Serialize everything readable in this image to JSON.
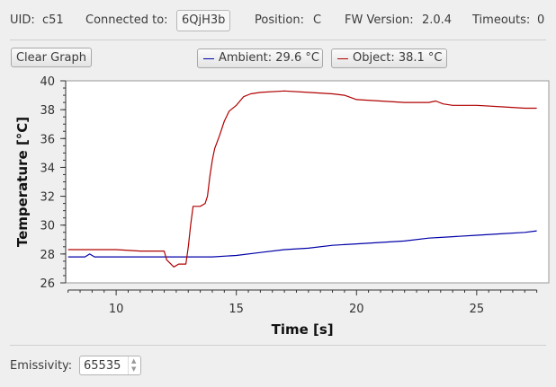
{
  "info": {
    "uid_label": "UID:",
    "uid_value": "c51",
    "connected_label": "Connected to:",
    "connected_value": "6QjH3b",
    "position_label": "Position:",
    "position_value": "C",
    "fw_label": "FW Version:",
    "fw_value": "2.0.4",
    "timeouts_label": "Timeouts:",
    "timeouts_value": "0"
  },
  "toolbar": {
    "clear_label": "Clear Graph"
  },
  "legend": {
    "ambient": "Ambient: 29.6 °C",
    "object": "Object: 38.1 °C"
  },
  "settings": {
    "emissivity_label": "Emissivity:",
    "emissivity_value": "65535"
  },
  "chart_data": {
    "type": "line",
    "xlabel": "Time [s]",
    "ylabel": "Temperature [°C]",
    "xlim": [
      7.9,
      28.0
    ],
    "ylim": [
      26,
      40
    ],
    "xticks": [
      10,
      15,
      20,
      25
    ],
    "yticks": [
      26,
      28,
      30,
      32,
      34,
      36,
      38,
      40
    ],
    "colors": {
      "ambient": "#0000a8",
      "object": "#b00000"
    },
    "series": [
      {
        "name": "Ambient",
        "x": [
          8.0,
          8.7,
          8.9,
          9.1,
          10.0,
          12.0,
          14.0,
          15.0,
          16.0,
          17.0,
          18.0,
          19.0,
          20.0,
          21.0,
          22.0,
          23.0,
          24.0,
          25.0,
          26.0,
          27.0,
          27.5
        ],
        "y": [
          27.8,
          27.8,
          28.0,
          27.8,
          27.8,
          27.8,
          27.8,
          27.9,
          28.1,
          28.3,
          28.4,
          28.6,
          28.7,
          28.8,
          28.9,
          29.1,
          29.2,
          29.3,
          29.4,
          29.5,
          29.6
        ]
      },
      {
        "name": "Object",
        "x": [
          8.0,
          9.0,
          10.0,
          11.0,
          12.0,
          12.1,
          12.4,
          12.6,
          12.9,
          13.0,
          13.1,
          13.2,
          13.5,
          13.7,
          13.8,
          13.9,
          14.0,
          14.1,
          14.3,
          14.5,
          14.7,
          15.0,
          15.3,
          15.6,
          16.0,
          17.0,
          18.0,
          19.0,
          19.5,
          20.0,
          21.0,
          22.0,
          23.0,
          23.3,
          23.6,
          24.0,
          25.0,
          26.0,
          27.0,
          27.5
        ],
        "y": [
          28.3,
          28.3,
          28.3,
          28.2,
          28.2,
          27.6,
          27.1,
          27.3,
          27.3,
          28.5,
          30.0,
          31.3,
          31.3,
          31.5,
          32.0,
          33.4,
          34.5,
          35.3,
          36.2,
          37.2,
          37.9,
          38.3,
          38.9,
          39.1,
          39.2,
          39.3,
          39.2,
          39.1,
          39.0,
          38.7,
          38.6,
          38.5,
          38.5,
          38.6,
          38.4,
          38.3,
          38.3,
          38.2,
          38.1,
          38.1
        ]
      }
    ],
    "legend_position": "top",
    "grid": false
  }
}
